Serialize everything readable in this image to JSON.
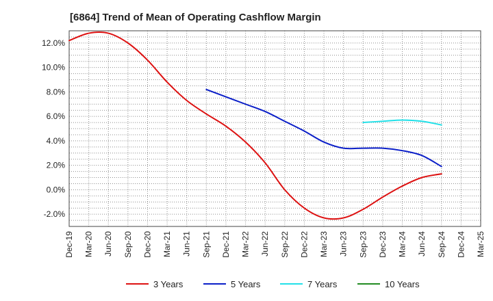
{
  "chart_data": {
    "type": "line",
    "title": "[6864]  Trend of Mean of Operating Cashflow Margin",
    "xlabel": "",
    "ylabel": "",
    "categories": [
      "Dec-19",
      "Mar-20",
      "Jun-20",
      "Sep-20",
      "Dec-20",
      "Mar-21",
      "Jun-21",
      "Sep-21",
      "Dec-21",
      "Mar-22",
      "Jun-22",
      "Sep-22",
      "Dec-22",
      "Mar-23",
      "Jun-23",
      "Sep-23",
      "Dec-23",
      "Mar-24",
      "Jun-24",
      "Sep-24",
      "Dec-24",
      "Mar-25"
    ],
    "ylim": [
      -3.0,
      13.0
    ],
    "yticks": [
      -2.0,
      0.0,
      2.0,
      4.0,
      6.0,
      8.0,
      10.0,
      12.0
    ],
    "ytick_labels": [
      "-2.0%",
      "0.0%",
      "2.0%",
      "4.0%",
      "6.0%",
      "8.0%",
      "10.0%",
      "12.0%"
    ],
    "grid": true,
    "legend_position": "bottom",
    "series": [
      {
        "name": "3 Years",
        "color": "#dd1111",
        "values": [
          12.2,
          12.8,
          12.8,
          12.0,
          10.6,
          8.8,
          7.3,
          6.2,
          5.2,
          3.9,
          2.2,
          0.0,
          -1.5,
          -2.3,
          -2.3,
          -1.6,
          -0.6,
          0.3,
          1.0,
          1.3,
          null,
          null
        ]
      },
      {
        "name": "5 Years",
        "color": "#0a1ec8",
        "values": [
          null,
          null,
          null,
          null,
          null,
          null,
          null,
          8.2,
          7.6,
          7.0,
          6.4,
          5.6,
          4.8,
          3.9,
          3.4,
          3.4,
          3.4,
          3.2,
          2.8,
          1.9,
          null,
          null
        ]
      },
      {
        "name": "7 Years",
        "color": "#22e0e8",
        "values": [
          null,
          null,
          null,
          null,
          null,
          null,
          null,
          null,
          null,
          null,
          null,
          null,
          null,
          null,
          null,
          5.5,
          5.6,
          5.7,
          5.6,
          5.3,
          null,
          null
        ]
      },
      {
        "name": "10 Years",
        "color": "#228b22",
        "values": [
          null,
          null,
          null,
          null,
          null,
          null,
          null,
          null,
          null,
          null,
          null,
          null,
          null,
          null,
          null,
          null,
          null,
          null,
          null,
          null,
          null,
          null
        ]
      }
    ]
  }
}
